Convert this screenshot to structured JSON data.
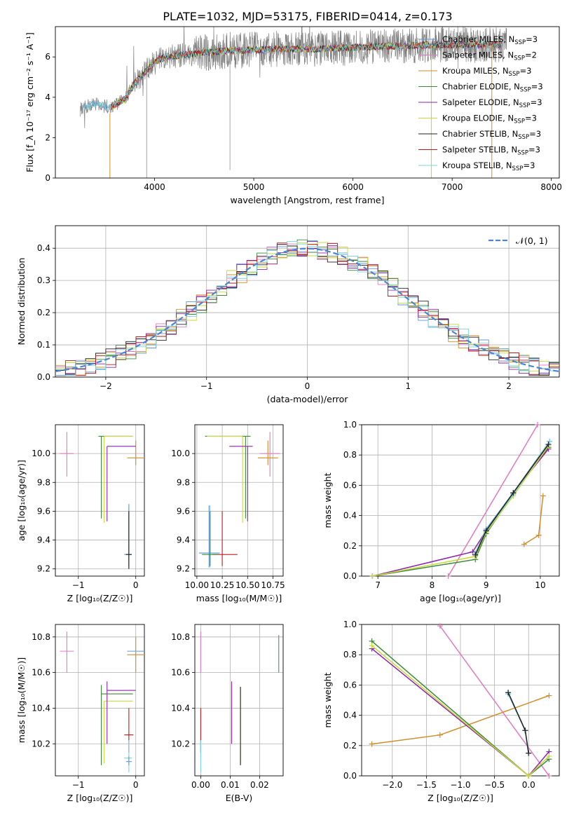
{
  "figure_title": "PLATE=1032, MJD=53175, FIBERID=0414, z=0.173",
  "legend_colors": [
    "#5b9bd5",
    "#e377c2",
    "#d18c2a",
    "#3a8a3a",
    "#8e24aa",
    "#c8d93a",
    "#222222",
    "#c0181a",
    "#7ad4e0"
  ],
  "chart_data": [
    {
      "id": "spectrum",
      "type": "line",
      "title": "PLATE=1032, MJD=53175, FIBERID=0414, z=0.173",
      "xlabel": "wavelength [Angstrom, rest frame]",
      "ylabel": "Flux [f_λ 10⁻¹⁷ erg cm⁻² s⁻¹ A⁻¹]",
      "xlim": [
        3000,
        8080
      ],
      "ylim": [
        0,
        7.5
      ],
      "xticks": [
        "4000",
        "5000",
        "6000",
        "7000",
        "8000"
      ],
      "yticks": [
        "0",
        "2",
        "4",
        "6"
      ],
      "grid": false,
      "legend_position": "top-right",
      "continuum_data": {
        "x": [
          3250,
          3400,
          3550,
          3700,
          3800,
          3950,
          4050,
          4150,
          4300,
          4500,
          4700,
          5000,
          5300,
          5600,
          5900,
          6200,
          6500,
          6800,
          7100,
          7400,
          7550
        ],
        "y": [
          3.4,
          3.7,
          3.5,
          3.9,
          4.7,
          5.5,
          5.9,
          6.0,
          6.1,
          6.2,
          6.3,
          6.35,
          6.4,
          6.4,
          6.45,
          6.5,
          6.55,
          6.6,
          6.6,
          6.6,
          6.6
        ]
      },
      "series": [
        {
          "name": "Chabrier MILES, N_SSP=3",
          "color": "#5b9bd5"
        },
        {
          "name": "Salpeter MILES, N_SSP=2",
          "color": "#e377c2"
        },
        {
          "name": "Kroupa MILES, N_SSP=3",
          "color": "#d18c2a"
        },
        {
          "name": "Chabrier ELODIE, N_SSP=3",
          "color": "#3a8a3a"
        },
        {
          "name": "Salpeter ELODIE, N_SSP=3",
          "color": "#8e24aa"
        },
        {
          "name": "Kroupa ELODIE, N_SSP=3",
          "color": "#c8d93a"
        },
        {
          "name": "Chabrier STELIB, N_SSP=3",
          "color": "#222222"
        },
        {
          "name": "Salpeter STELIB, N_SSP=3",
          "color": "#c0181a"
        },
        {
          "name": "Kroupa STELIB, N_SSP=3",
          "color": "#7ad4e0"
        }
      ]
    },
    {
      "id": "residuals",
      "type": "line",
      "xlabel": "(data-model)/error",
      "ylabel": "Normed distribution",
      "xlim": [
        -2.5,
        2.5
      ],
      "ylim": [
        0,
        0.47
      ],
      "xticks": [
        "−2",
        "−1",
        "0",
        "1",
        "2"
      ],
      "yticks": [
        "0.0",
        "0.1",
        "0.2",
        "0.3",
        "0.4"
      ],
      "grid": true,
      "legend_position": "top-right",
      "reference_curve": {
        "name": "𝒩(0, 1)",
        "color": "#4a86d8",
        "mean": 0,
        "sigma": 1
      },
      "histogram": {
        "bin_start": -2.5,
        "bin_width": 0.1,
        "series_count": 9
      }
    },
    {
      "id": "age_vs_Z",
      "type": "scatter",
      "xlabel": "Z [log₁₀(Z/Z☉)]",
      "ylabel": "age  [log₁₀(age/yr)]",
      "xlim": [
        -1.4,
        0.15
      ],
      "ylim": [
        9.15,
        10.2
      ],
      "xticks": [
        "−1",
        "0"
      ],
      "yticks": [
        "9.2",
        "9.4",
        "9.6",
        "9.8",
        "10.0"
      ],
      "grid": true,
      "points": [
        {
          "x": -1.2,
          "y": 10.0,
          "xerr": [
            0.12,
            0.12
          ],
          "yerr": [
            0.16,
            0.15
          ],
          "color": "#e377c2"
        },
        {
          "x": 0.0,
          "y": 9.97,
          "xerr": [
            0.15,
            0.15
          ],
          "yerr": [
            0.05,
            0.12
          ],
          "color": "#d18c2a"
        },
        {
          "x": -0.6,
          "y": 10.12,
          "xerr": [
            0.05,
            0.55
          ],
          "yerr": [
            0.57,
            0.0
          ],
          "color": "#3a8a3a"
        },
        {
          "x": -0.55,
          "y": 10.12,
          "xerr": [
            0.0,
            0.5
          ],
          "yerr": [
            0.6,
            0.0
          ],
          "color": "#c8d93a"
        },
        {
          "x": -0.5,
          "y": 10.05,
          "xerr": [
            0.0,
            0.5
          ],
          "yerr": [
            0.52,
            0.0
          ],
          "color": "#8e24aa"
        },
        {
          "x": -0.12,
          "y": 9.3,
          "xerr": [
            0.05,
            0.05
          ],
          "yerr": [
            0.08,
            0.3
          ],
          "color": "#c0181a"
        },
        {
          "x": -0.12,
          "y": 9.3,
          "xerr": [
            0.08,
            0.05
          ],
          "yerr": [
            0.08,
            0.33
          ],
          "color": "#7ad4e0"
        },
        {
          "x": -0.12,
          "y": 9.3,
          "xerr": [
            0.08,
            0.05
          ],
          "yerr": [
            0.1,
            0.35
          ],
          "color": "#5b9bd5"
        },
        {
          "x": -0.12,
          "y": 9.3,
          "xerr": [
            0.05,
            0.05
          ],
          "yerr": [
            0.1,
            0.3
          ],
          "color": "#222222"
        }
      ]
    },
    {
      "id": "age_vs_mass",
      "type": "scatter",
      "xlabel": "mass [log₁₀(M/M☉)]",
      "ylabel": "",
      "xlim": [
        9.98,
        10.85
      ],
      "ylim": [
        9.15,
        10.2
      ],
      "xticks": [
        "10.00",
        "10.25",
        "10.50",
        "10.75"
      ],
      "yticks": [
        "9.2",
        "9.4",
        "9.6",
        "9.8",
        "10.0"
      ],
      "grid": true,
      "points": [
        {
          "x": 10.72,
          "y": 10.0,
          "xerr": [
            0.1,
            0.1
          ],
          "yerr": [
            0.16,
            0.15
          ],
          "color": "#e377c2"
        },
        {
          "x": 10.7,
          "y": 9.97,
          "xerr": [
            0.1,
            0.1
          ],
          "yerr": [
            0.05,
            0.12
          ],
          "color": "#d18c2a"
        },
        {
          "x": 10.48,
          "y": 10.12,
          "xerr": [
            0.4,
            0.05
          ],
          "yerr": [
            0.57,
            0.0
          ],
          "color": "#3a8a3a"
        },
        {
          "x": 10.45,
          "y": 10.12,
          "xerr": [
            0.35,
            0.0
          ],
          "yerr": [
            0.6,
            0.0
          ],
          "color": "#c8d93a"
        },
        {
          "x": 10.5,
          "y": 10.05,
          "xerr": [
            0.18,
            0.05
          ],
          "yerr": [
            0.52,
            0.0
          ],
          "color": "#8e24aa"
        },
        {
          "x": 10.25,
          "y": 9.3,
          "xerr": [
            0.1,
            0.15
          ],
          "yerr": [
            0.08,
            0.3
          ],
          "color": "#c0181a"
        },
        {
          "x": 10.13,
          "y": 9.31,
          "xerr": [
            0.1,
            0.1
          ],
          "yerr": [
            0.1,
            0.33
          ],
          "color": "#7ad4e0"
        },
        {
          "x": 10.12,
          "y": 9.31,
          "xerr": [
            0.1,
            0.1
          ],
          "yerr": [
            0.1,
            0.33
          ],
          "color": "#5b9bd5"
        },
        {
          "x": 10.13,
          "y": 9.3,
          "xerr": [
            0.08,
            0.08
          ],
          "yerr": [
            0.08,
            0.3
          ],
          "color": "#3a8a3a"
        }
      ]
    },
    {
      "id": "weight_vs_age",
      "type": "line",
      "xlabel": "age  [log₁₀(age/yr)]",
      "ylabel": "mass weight",
      "xlim": [
        6.7,
        10.35
      ],
      "ylim": [
        0,
        1.0
      ],
      "xticks": [
        "7",
        "8",
        "9",
        "10"
      ],
      "yticks": [
        "0.0",
        "0.2",
        "0.4",
        "0.6",
        "0.8",
        "1.0"
      ],
      "grid": true,
      "series": [
        {
          "color": "#e377c2",
          "x": [
            8.3,
            9.95
          ],
          "y": [
            0.0,
            1.0
          ]
        },
        {
          "color": "#d18c2a",
          "x": [
            9.7,
            9.97,
            10.05
          ],
          "y": [
            0.21,
            0.27,
            0.53
          ]
        },
        {
          "color": "#3a8a3a",
          "x": [
            6.9,
            8.8,
            9.0,
            9.5,
            10.15
          ],
          "y": [
            0.0,
            0.11,
            0.28,
            0.54,
            0.85
          ]
        },
        {
          "color": "#8e24aa",
          "x": [
            6.9,
            8.75,
            9.0,
            9.5,
            10.15
          ],
          "y": [
            0.0,
            0.16,
            0.3,
            0.55,
            0.84
          ]
        },
        {
          "color": "#c8d93a",
          "x": [
            6.9,
            8.8,
            9.0,
            9.5,
            10.15
          ],
          "y": [
            0.0,
            0.13,
            0.29,
            0.53,
            0.86
          ]
        },
        {
          "color": "#5b9bd5",
          "x": [
            8.8,
            9.0,
            9.5,
            10.17
          ],
          "y": [
            0.15,
            0.31,
            0.55,
            0.89
          ]
        },
        {
          "color": "#7ad4e0",
          "x": [
            8.8,
            9.0,
            9.5,
            10.17
          ],
          "y": [
            0.15,
            0.3,
            0.54,
            0.89
          ]
        },
        {
          "color": "#222222",
          "x": [
            8.8,
            9.0,
            9.5,
            10.15
          ],
          "y": [
            0.14,
            0.3,
            0.55,
            0.87
          ]
        }
      ]
    },
    {
      "id": "mass_vs_Z",
      "type": "scatter",
      "xlabel": "Z [log₁₀(Z/Z☉)]",
      "ylabel": "mass [log₁₀(M/M☉)]",
      "xlim": [
        -1.4,
        0.15
      ],
      "ylim": [
        10.02,
        10.87
      ],
      "xticks": [
        "−1",
        "0"
      ],
      "yticks": [
        "10.2",
        "10.4",
        "10.6",
        "10.8"
      ],
      "grid": true,
      "points": [
        {
          "x": -1.2,
          "y": 10.72,
          "xerr": [
            0.12,
            0.12
          ],
          "yerr": [
            0.12,
            0.11
          ],
          "color": "#e377c2"
        },
        {
          "x": 0.0,
          "y": 10.72,
          "xerr": [
            0.15,
            0.15
          ],
          "yerr": [
            0.0,
            0.0
          ],
          "color": "#5b9bd5"
        },
        {
          "x": 0.0,
          "y": 10.7,
          "xerr": [
            0.15,
            0.15
          ],
          "yerr": [
            0.1,
            0.1
          ],
          "color": "#d18c2a"
        },
        {
          "x": -0.6,
          "y": 10.48,
          "xerr": [
            0.0,
            0.55
          ],
          "yerr": [
            0.4,
            0.05
          ],
          "color": "#3a8a3a"
        },
        {
          "x": -0.55,
          "y": 10.44,
          "xerr": [
            0.0,
            0.5
          ],
          "yerr": [
            0.35,
            0.0
          ],
          "color": "#c8d93a"
        },
        {
          "x": -0.5,
          "y": 10.5,
          "xerr": [
            0.0,
            0.5
          ],
          "yerr": [
            0.3,
            0.05
          ],
          "color": "#8e24aa"
        },
        {
          "x": -0.12,
          "y": 10.25,
          "xerr": [
            0.08,
            0.08
          ],
          "yerr": [
            0.1,
            0.15
          ],
          "color": "#c0181a"
        },
        {
          "x": -0.12,
          "y": 10.12,
          "xerr": [
            0.08,
            0.05
          ],
          "yerr": [
            0.08,
            0.1
          ],
          "color": "#7ad4e0"
        },
        {
          "x": -0.12,
          "y": 10.1,
          "xerr": [
            0.05,
            0.05
          ],
          "yerr": [
            0.02,
            0.03
          ],
          "color": "#5b9bd5"
        }
      ]
    },
    {
      "id": "mass_vs_EBV",
      "type": "scatter",
      "xlabel": "E(B-V)",
      "ylabel": "",
      "xlim": [
        -0.002,
        0.028
      ],
      "ylim": [
        10.02,
        10.87
      ],
      "xticks": [
        "0.00",
        "0.01",
        "0.02"
      ],
      "yticks": [
        "10.2",
        "10.4",
        "10.6",
        "10.8"
      ],
      "grid": true,
      "points": [
        {
          "x": 0.0,
          "y": 10.72,
          "xerr": [
            0,
            0
          ],
          "yerr": [
            0.12,
            0.11
          ],
          "color": "#e377c2"
        },
        {
          "x": 0.0,
          "y": 10.25,
          "xerr": [
            0,
            0
          ],
          "yerr": [
            0.1,
            0.15
          ],
          "color": "#c0181a"
        },
        {
          "x": 0.0,
          "y": 10.12,
          "xerr": [
            0,
            0
          ],
          "yerr": [
            0.08,
            0.1
          ],
          "color": "#7ad4e0"
        },
        {
          "x": 0.0105,
          "y": 10.35,
          "xerr": [
            0,
            0
          ],
          "yerr": [
            0.15,
            0.2
          ],
          "color": "#8e24aa"
        },
        {
          "x": 0.0135,
          "y": 10.3,
          "xerr": [
            0,
            0
          ],
          "yerr": [
            0.22,
            0.22
          ],
          "color": "#c8d93a"
        },
        {
          "x": 0.0135,
          "y": 10.3,
          "xerr": [
            0,
            0
          ],
          "yerr": [
            0.22,
            0.22
          ],
          "color": "#222222"
        },
        {
          "x": 0.0265,
          "y": 10.7,
          "xerr": [
            0,
            0
          ],
          "yerr": [
            0.1,
            0.11
          ],
          "color": "#d18c2a"
        },
        {
          "x": 0.0265,
          "y": 10.7,
          "xerr": [
            0,
            0
          ],
          "yerr": [
            0.1,
            0.11
          ],
          "color": "#5b9bd5"
        }
      ]
    },
    {
      "id": "weight_vs_Z",
      "type": "line",
      "xlabel": "Z [log₁₀(Z/Z☉)]",
      "ylabel": "mass weight",
      "xlim": [
        -2.45,
        0.45
      ],
      "ylim": [
        0,
        1.0
      ],
      "xticks": [
        "−2.0",
        "−1.5",
        "−1.0",
        "−0.5",
        "0.0"
      ],
      "yticks": [
        "0.0",
        "0.2",
        "0.4",
        "0.6",
        "0.8",
        "1.0"
      ],
      "grid": true,
      "series": [
        {
          "color": "#e377c2",
          "x": [
            -1.3,
            0.3
          ],
          "y": [
            0.99,
            0.0
          ]
        },
        {
          "color": "#d18c2a",
          "x": [
            -2.3,
            -1.3,
            0.3
          ],
          "y": [
            0.21,
            0.27,
            0.53
          ]
        },
        {
          "color": "#3a8a3a",
          "x": [
            -2.3,
            0.0,
            0.3
          ],
          "y": [
            0.89,
            0.0,
            0.11
          ]
        },
        {
          "color": "#8e24aa",
          "x": [
            -2.3,
            0.0,
            0.3
          ],
          "y": [
            0.84,
            0.0,
            0.16
          ]
        },
        {
          "color": "#c8d93a",
          "x": [
            -2.3,
            0.0,
            0.3
          ],
          "y": [
            0.86,
            0.0,
            0.13
          ]
        },
        {
          "color": "#5b9bd5",
          "x": [
            -0.3,
            -0.05,
            0.0
          ],
          "y": [
            0.55,
            0.3,
            0.15
          ]
        },
        {
          "color": "#7ad4e0",
          "x": [
            -0.3,
            -0.05,
            0.0
          ],
          "y": [
            0.54,
            0.3,
            0.15
          ]
        },
        {
          "color": "#222222",
          "x": [
            -0.3,
            -0.05,
            0.0
          ],
          "y": [
            0.55,
            0.3,
            0.15
          ]
        }
      ]
    }
  ]
}
